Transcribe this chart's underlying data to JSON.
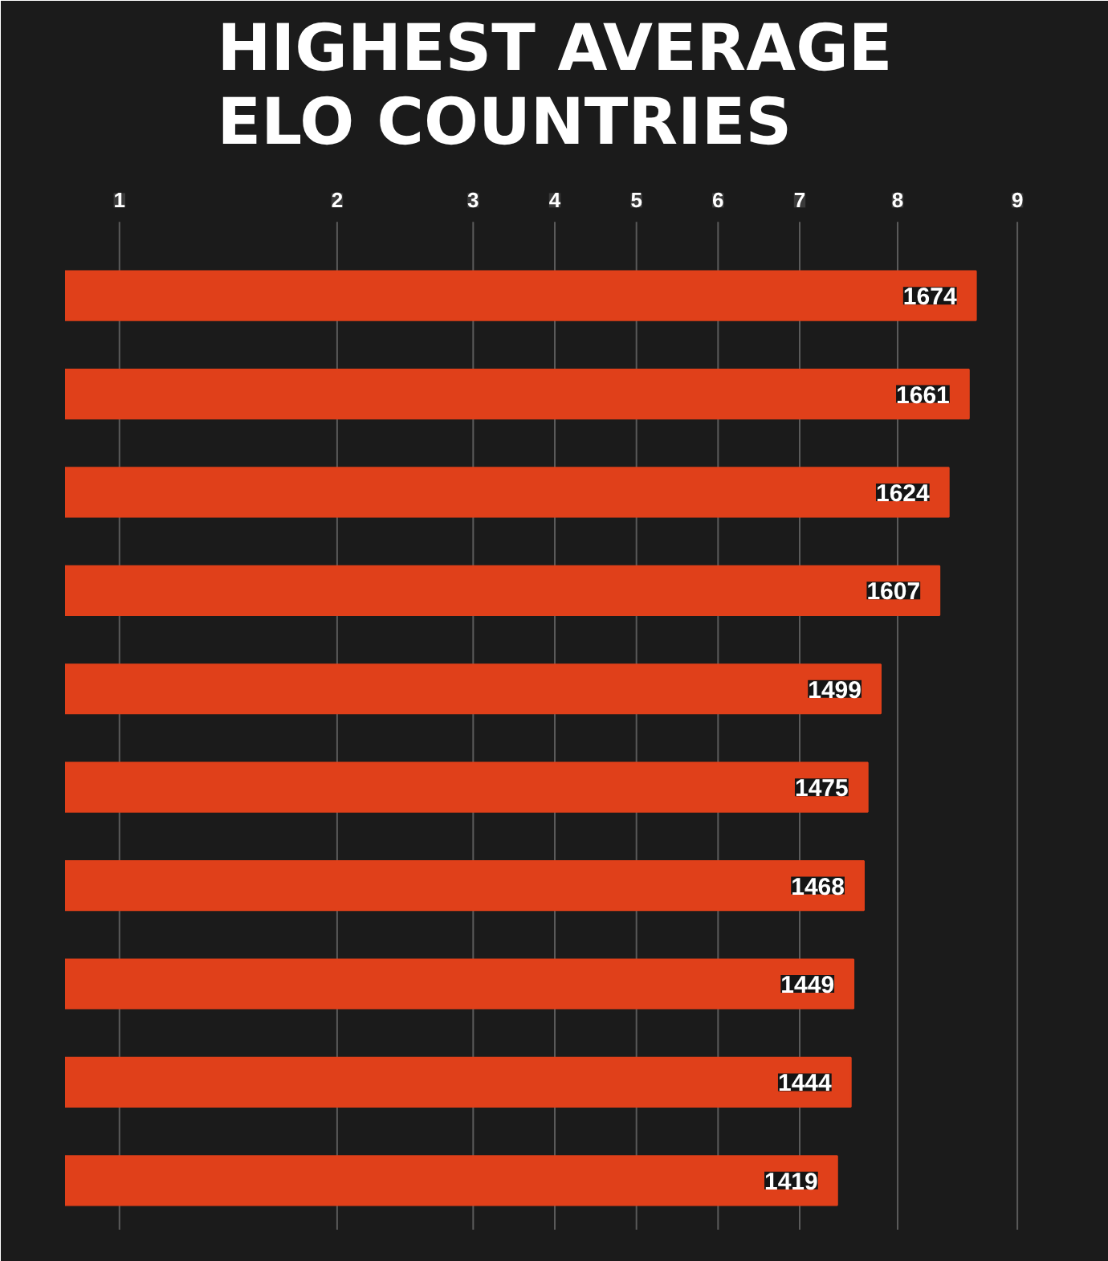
{
  "chart_data": {
    "type": "bar",
    "orientation": "horizontal",
    "title": "HIGHEST AVERAGE\nELO COUNTRIES",
    "categories": [
      null,
      null,
      null,
      null,
      null,
      null,
      null,
      null,
      null,
      null
    ],
    "values": [
      1674,
      1661,
      1624,
      1607,
      1499,
      1475,
      1468,
      1449,
      1444,
      1419
    ],
    "color": "#e0401a",
    "xlim": [
      0,
      1800
    ],
    "ref_lines": [
      {
        "axis": "x",
        "value": 100
      },
      {
        "axis": "x",
        "value": 500
      },
      {
        "axis": "x",
        "value": 750
      },
      {
        "axis": "x",
        "value": 900
      },
      {
        "axis": "x",
        "value": 1050
      },
      {
        "axis": "x",
        "value": 1200
      },
      {
        "axis": "x",
        "value": 1350
      },
      {
        "axis": "x",
        "value": 1530
      },
      {
        "axis": "x",
        "value": 1750
      }
    ],
    "annotations": [
      "1",
      "2",
      "3",
      "4",
      "5",
      "6",
      "7",
      "8",
      "9"
    ],
    "tick_labels": false,
    "data_labels": true
  }
}
